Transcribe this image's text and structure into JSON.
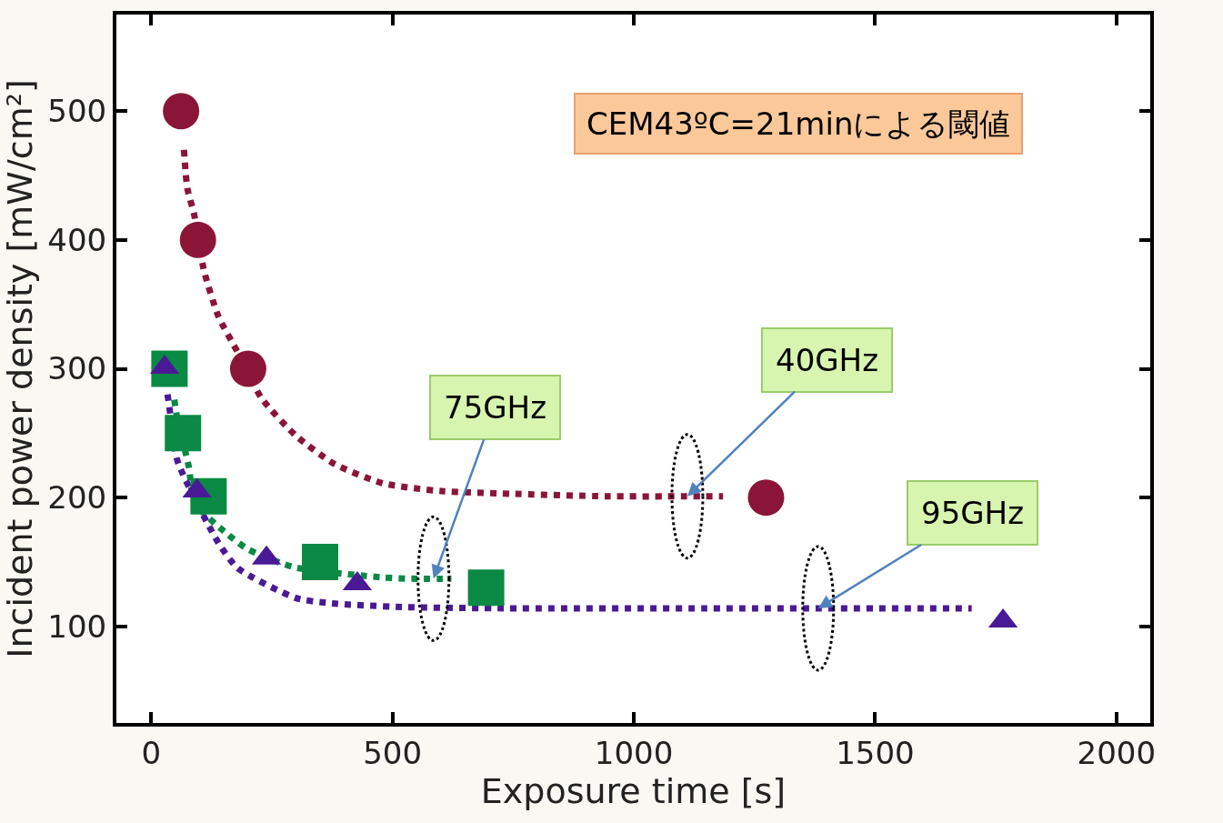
{
  "chart_data": {
    "type": "line",
    "xlabel": "Exposure time [s]",
    "ylabel": "Incident power density [mW/cm²]",
    "xlim": [
      -72,
      2070
    ],
    "ylim": [
      25,
      575
    ],
    "xticks": [
      0,
      500,
      1000,
      1500,
      2000
    ],
    "yticks": [
      100,
      200,
      300,
      400,
      500
    ],
    "series": [
      {
        "color": "#8b1538",
        "line_style": "dotted",
        "x": [
          68,
          75,
          89,
          109,
          139,
          179,
          229,
          300,
          380,
          481,
          602,
          742,
          944,
          1185
        ],
        "values": [
          470,
          440,
          420,
          377,
          341,
          313,
          277,
          248,
          226,
          211,
          205,
          203,
          201,
          201
        ]
      },
      {
        "color": "#0a8a44",
        "line_style": "dotted",
        "x": [
          48,
          54,
          78,
          90,
          160,
          200,
          295,
          480,
          540,
          622
        ],
        "values": [
          276,
          262,
          224,
          196,
          171,
          160,
          146,
          138,
          137,
          137
        ]
      },
      {
        "color": "#4a1a96",
        "line_style": "dotted",
        "x": [
          34,
          40,
          55,
          139,
          180,
          300,
          370,
          520,
          742,
          1145,
          1700
        ],
        "values": [
          280,
          264,
          228,
          165,
          145,
          122,
          118,
          115,
          114,
          114,
          114
        ]
      },
      {
        "type": "scatter",
        "color": "#8b1538",
        "marker": "circle",
        "x": [
          62,
          97,
          201,
          1274
        ],
        "values": [
          500,
          400,
          300,
          200
        ]
      },
      {
        "type": "scatter",
        "color": "#0a8a44",
        "marker": "square",
        "x": [
          38,
          66,
          119,
          350,
          694
        ],
        "values": [
          300,
          250,
          201,
          150,
          130
        ]
      },
      {
        "type": "scatter",
        "color": "#4a1a96",
        "marker": "triangle",
        "x": [
          28,
          95,
          239,
          427,
          1765
        ],
        "values": [
          301,
          205,
          153,
          133,
          104
        ]
      }
    ],
    "annotations": [
      "CEM43ºC=21minによる閾値",
      {
        "text": "75GHz",
        "x": 585,
        "y": 137
      },
      {
        "text": "40GHz",
        "x": 1111,
        "y": 201
      },
      {
        "text": "95GHz",
        "x": 1382,
        "y": 114
      }
    ]
  }
}
